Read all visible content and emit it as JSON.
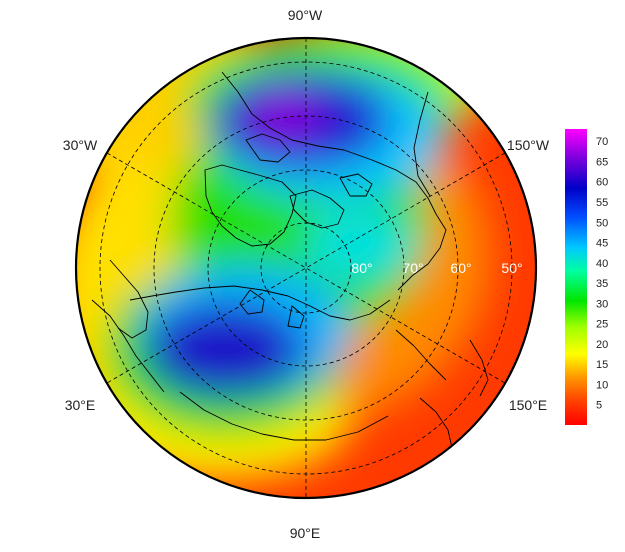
{
  "map": {
    "projection": "polar-stereographic-north",
    "longitude_labels": [
      {
        "key": "top",
        "text": "90°W"
      },
      {
        "key": "upper-left",
        "text": "30°W"
      },
      {
        "key": "upper-right",
        "text": "150°W"
      },
      {
        "key": "lower-left",
        "text": "30°E"
      },
      {
        "key": "lower-right",
        "text": "150°E"
      },
      {
        "key": "bottom",
        "text": "90°E"
      }
    ],
    "latitude_labels": [
      "80°",
      "70°",
      "60°",
      "50°"
    ],
    "latitude_circles_deg": [
      80,
      70,
      60,
      50
    ],
    "meridians_deg": [
      0,
      60,
      120
    ],
    "field_description": "gridded scalar field with two high-value centres (over northern Canada/Greenland and over northern Europe/western Russia) and low values over the Atlantic and Pacific margins"
  },
  "colorbar": {
    "ticks": [
      "70",
      "65",
      "60",
      "55",
      "50",
      "45",
      "40",
      "35",
      "30",
      "25",
      "20",
      "15",
      "10",
      "5"
    ],
    "min": 0,
    "max": 73,
    "colors": [
      "#ff0000",
      "#ff5a00",
      "#ffb400",
      "#ffff00",
      "#b4ff00",
      "#50ff00",
      "#00e600",
      "#00ffb4",
      "#00c8ff",
      "#0064ff",
      "#0000d2",
      "#3200c8",
      "#9600dc",
      "#ff00ff"
    ]
  }
}
